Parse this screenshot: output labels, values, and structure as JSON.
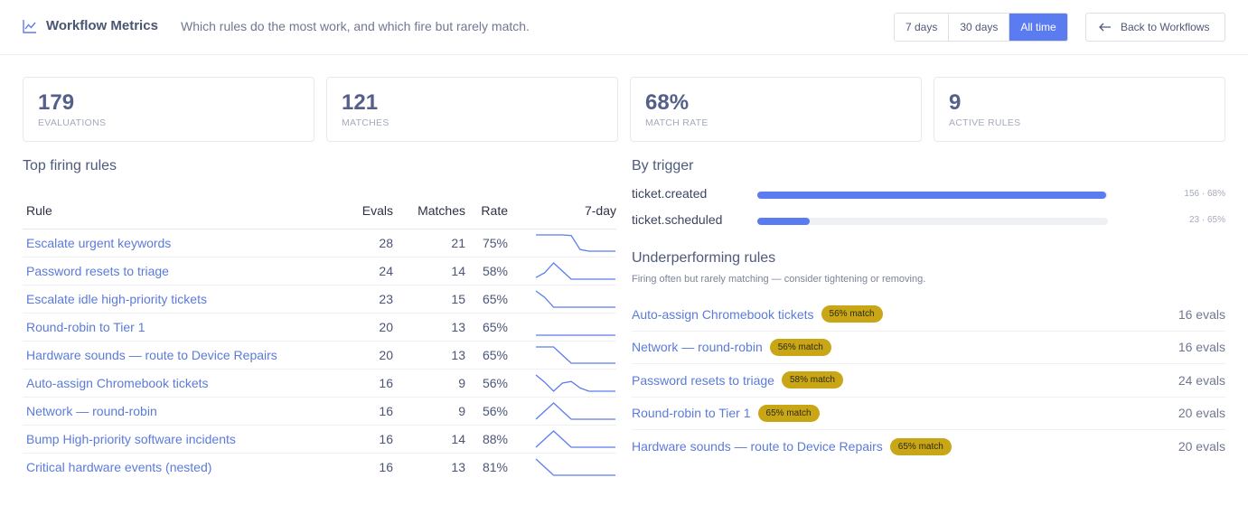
{
  "header": {
    "title": "Workflow Metrics",
    "subtitle": "Which rules do the most work, and which fire but rarely match.",
    "ranges": [
      "7 days",
      "30 days",
      "All time"
    ],
    "active_range": "All time",
    "back_label": "Back to Workflows",
    "accent": "#5b7cf0"
  },
  "kpis": [
    {
      "value": "179",
      "label": "EVALUATIONS"
    },
    {
      "value": "121",
      "label": "MATCHES"
    },
    {
      "value": "68%",
      "label": "MATCH RATE"
    },
    {
      "value": "9",
      "label": "ACTIVE RULES"
    }
  ],
  "top_rules": {
    "title": "Top firing rules",
    "columns": {
      "rule": "Rule",
      "evals": "Evals",
      "matches": "Matches",
      "rate": "Rate",
      "trend": "7-day"
    },
    "rows": [
      {
        "name": "Escalate urgent keywords",
        "evals": "28",
        "matches": "21",
        "rate": "75%",
        "trend": [
          1,
          1,
          1,
          1,
          0.96,
          0.1,
          0,
          0,
          0,
          0
        ]
      },
      {
        "name": "Password resets to triage",
        "evals": "24",
        "matches": "14",
        "rate": "58%",
        "trend": [
          0.1,
          0.4,
          1,
          0.5,
          0,
          0,
          0,
          0,
          0,
          0
        ]
      },
      {
        "name": "Escalate idle high-priority tickets",
        "evals": "23",
        "matches": "15",
        "rate": "65%",
        "trend": [
          1,
          0.6,
          0,
          0,
          0,
          0,
          0,
          0,
          0,
          0
        ]
      },
      {
        "name": "Round-robin to Tier 1",
        "evals": "20",
        "matches": "13",
        "rate": "65%",
        "trend": [
          0,
          0,
          0,
          0,
          0,
          0,
          0,
          0,
          0,
          0
        ]
      },
      {
        "name": "Hardware sounds — route to Device Repairs",
        "evals": "20",
        "matches": "13",
        "rate": "65%",
        "trend": [
          1,
          1,
          1,
          0.5,
          0,
          0,
          0,
          0,
          0,
          0
        ]
      },
      {
        "name": "Auto-assign Chromebook tickets",
        "evals": "16",
        "matches": "9",
        "rate": "56%",
        "trend": [
          1,
          0.55,
          0,
          0.5,
          0.6,
          0.2,
          0,
          0,
          0,
          0
        ]
      },
      {
        "name": "Network — round-robin",
        "evals": "16",
        "matches": "9",
        "rate": "56%",
        "trend": [
          0,
          0.5,
          1,
          0.5,
          0,
          0,
          0,
          0,
          0,
          0
        ]
      },
      {
        "name": "Bump High-priority software incidents",
        "evals": "16",
        "matches": "14",
        "rate": "88%",
        "trend": [
          0,
          0.5,
          1,
          0.5,
          0,
          0,
          0,
          0,
          0,
          0
        ]
      },
      {
        "name": "Critical hardware events (nested)",
        "evals": "16",
        "matches": "13",
        "rate": "81%",
        "trend": [
          1,
          0.5,
          0,
          0,
          0,
          0,
          0,
          0,
          0,
          0
        ]
      }
    ]
  },
  "by_trigger": {
    "title": "By trigger",
    "items": [
      {
        "name": "ticket.created",
        "meta": "156 · 68%",
        "fraction": 0.995
      },
      {
        "name": "ticket.scheduled",
        "meta": "23 · 65%",
        "fraction": 0.15
      }
    ]
  },
  "underperforming": {
    "title": "Underperforming rules",
    "note": "Firing often but rarely matching — consider tightening or removing.",
    "items": [
      {
        "name": "Auto-assign Chromebook tickets",
        "badge": "56% match",
        "evals": "16 evals"
      },
      {
        "name": "Network — round-robin",
        "badge": "56% match",
        "evals": "16 evals"
      },
      {
        "name": "Password resets to triage",
        "badge": "58% match",
        "evals": "24 evals"
      },
      {
        "name": "Round-robin to Tier 1",
        "badge": "65% match",
        "evals": "20 evals"
      },
      {
        "name": "Hardware sounds — route to Device Repairs",
        "badge": "65% match",
        "evals": "20 evals"
      }
    ]
  }
}
